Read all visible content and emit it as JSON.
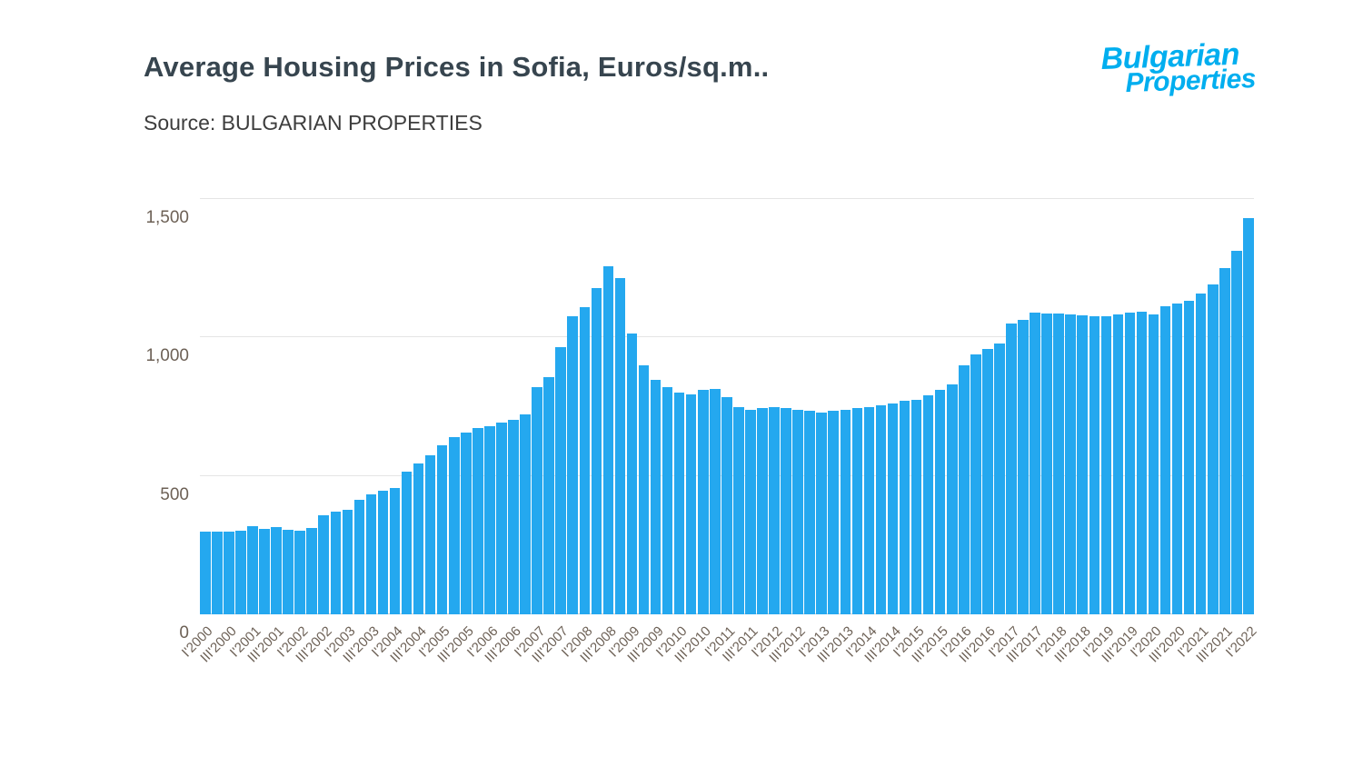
{
  "header": {
    "title": "Average Housing Prices in Sofia, Euros/sq.m..",
    "source": "Source: BULGARIAN PROPERTIES"
  },
  "logo": {
    "line1": "Bulgarian",
    "line2": "Properties",
    "color": "#00AEEF"
  },
  "chart_data": {
    "type": "bar",
    "title": "Average Housing Prices in Sofia, Euros/sq.m..",
    "source": "Source: BULGARIAN PROPERTIES",
    "bar_color": "#24A8EF",
    "grid": true,
    "legend": "none",
    "ylim": [
      0,
      1500
    ],
    "yticks": [
      0,
      500,
      1000,
      1500
    ],
    "ytick_labels": [
      "0",
      "500",
      "1,000",
      "1,500"
    ],
    "label_step": 2,
    "categories": [
      "I'2000",
      "II'2000",
      "III'2000",
      "IV'2000",
      "I'2001",
      "II'2001",
      "III'2001",
      "IV'2001",
      "I'2002",
      "II'2002",
      "III'2002",
      "IV'2002",
      "I'2003",
      "II'2003",
      "III'2003",
      "IV'2003",
      "I'2004",
      "II'2004",
      "III'2004",
      "IV'2004",
      "I'2005",
      "II'2005",
      "III'2005",
      "IV'2005",
      "I'2006",
      "II'2006",
      "III'2006",
      "IV'2006",
      "I'2007",
      "II'2007",
      "III'2007",
      "IV'2007",
      "I'2008",
      "II'2008",
      "III'2008",
      "IV'2008",
      "I'2009",
      "II'2009",
      "III'2009",
      "IV'2009",
      "I'2010",
      "II'2010",
      "III'2010",
      "IV'2010",
      "I'2011",
      "II'2011",
      "III'2011",
      "IV'2011",
      "I'2012",
      "II'2012",
      "III'2012",
      "IV'2012",
      "I'2013",
      "II'2013",
      "III'2013",
      "IV'2013",
      "I'2014",
      "II'2014",
      "III'2014",
      "IV'2014",
      "I'2015",
      "II'2015",
      "III'2015",
      "IV'2015",
      "I'2016",
      "II'2016",
      "III'2016",
      "IV'2016",
      "I'2017",
      "II'2017",
      "III'2017",
      "IV'2017",
      "I'2018",
      "II'2018",
      "III'2018",
      "IV'2018",
      "I'2019",
      "II'2019",
      "III'2019",
      "IV'2019",
      "I'2020",
      "II'2020",
      "III'2020",
      "IV'2020",
      "I'2021",
      "II'2021",
      "III'2021",
      "IV'2021",
      "I'2022"
    ],
    "values": [
      300,
      298,
      300,
      302,
      320,
      310,
      314,
      306,
      302,
      312,
      358,
      372,
      376,
      412,
      432,
      448,
      456,
      516,
      544,
      576,
      612,
      640,
      658,
      672,
      678,
      692,
      702,
      722,
      820,
      858,
      964,
      1078,
      1110,
      1180,
      1258,
      1214,
      1014,
      900,
      846,
      822,
      800,
      796,
      810,
      814,
      786,
      748,
      740,
      744,
      750,
      746,
      740,
      736,
      728,
      734,
      740,
      746,
      750,
      754,
      762,
      770,
      776,
      790,
      812,
      832,
      900,
      938,
      960,
      978,
      1050,
      1062,
      1090,
      1088,
      1086,
      1084,
      1080,
      1078,
      1076,
      1082,
      1090,
      1094,
      1082,
      1112,
      1122,
      1132,
      1160,
      1192,
      1252,
      1312,
      1430
    ]
  }
}
